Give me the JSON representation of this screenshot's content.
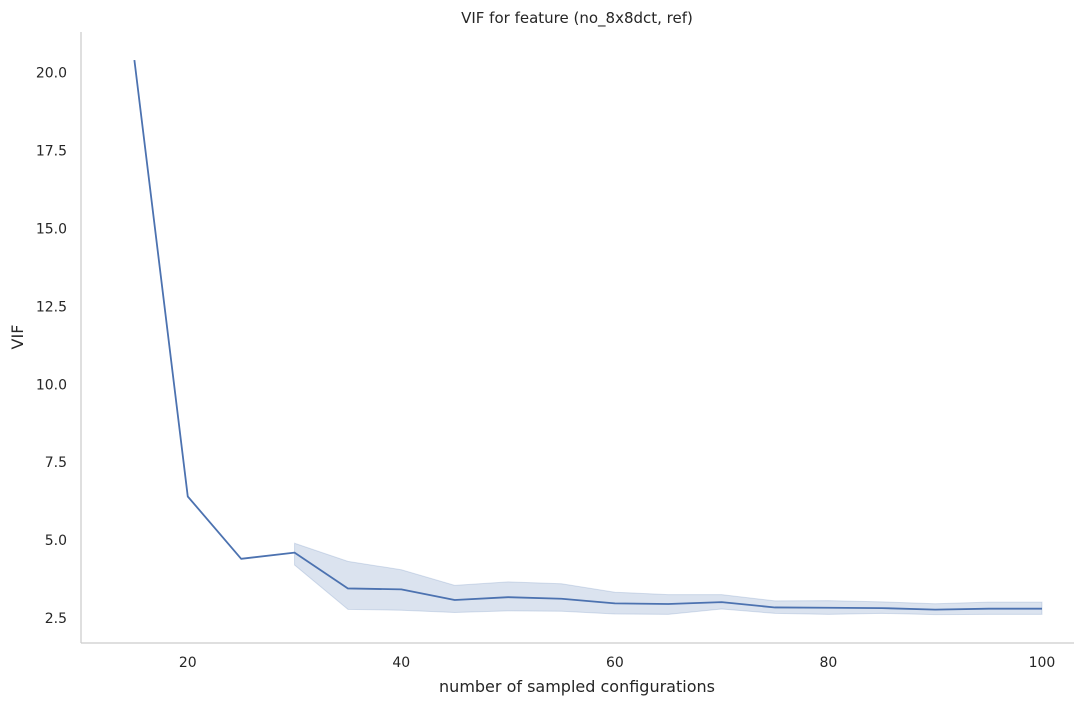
{
  "chart_data": {
    "type": "line",
    "title": "VIF for feature (no_8x8dct, ref)",
    "xlabel": "number of sampled configurations",
    "ylabel": "VIF",
    "xlim": [
      10,
      103
    ],
    "ylim": [
      1.7,
      21.3
    ],
    "x_ticks": [
      20,
      40,
      60,
      80,
      100
    ],
    "x_tick_labels": [
      "20",
      "40",
      "60",
      "80",
      "100"
    ],
    "y_ticks": [
      2.5,
      5.0,
      7.5,
      10.0,
      12.5,
      15.0,
      17.5,
      20.0
    ],
    "y_tick_labels": [
      "2.5",
      "5.0",
      "7.5",
      "10.0",
      "12.5",
      "15.0",
      "17.5",
      "20.0"
    ],
    "grid": false,
    "line_color": "#4c72b0",
    "band_color": "#4c72b0",
    "band_opacity": 0.2,
    "series": [
      {
        "x": [
          15,
          20,
          25,
          30,
          35,
          40,
          45,
          50,
          55,
          60,
          65,
          70,
          75,
          80,
          85,
          90,
          95,
          100
        ],
        "y": [
          20.4,
          6.4,
          4.4,
          4.6,
          3.45,
          3.42,
          3.08,
          3.17,
          3.12,
          2.97,
          2.95,
          3.01,
          2.84,
          2.83,
          2.82,
          2.77,
          2.8,
          2.8
        ],
        "ci_x": [
          30,
          35,
          40,
          45,
          50,
          55,
          60,
          65,
          70,
          75,
          80,
          85,
          90,
          95,
          100
        ],
        "ci_lower": [
          4.2,
          2.78,
          2.75,
          2.68,
          2.73,
          2.72,
          2.63,
          2.62,
          2.79,
          2.65,
          2.62,
          2.65,
          2.61,
          2.62,
          2.62
        ],
        "ci_upper": [
          4.9,
          4.32,
          4.05,
          3.55,
          3.66,
          3.6,
          3.33,
          3.25,
          3.25,
          3.05,
          3.06,
          3.02,
          2.96,
          3.01,
          3.01
        ]
      }
    ]
  }
}
